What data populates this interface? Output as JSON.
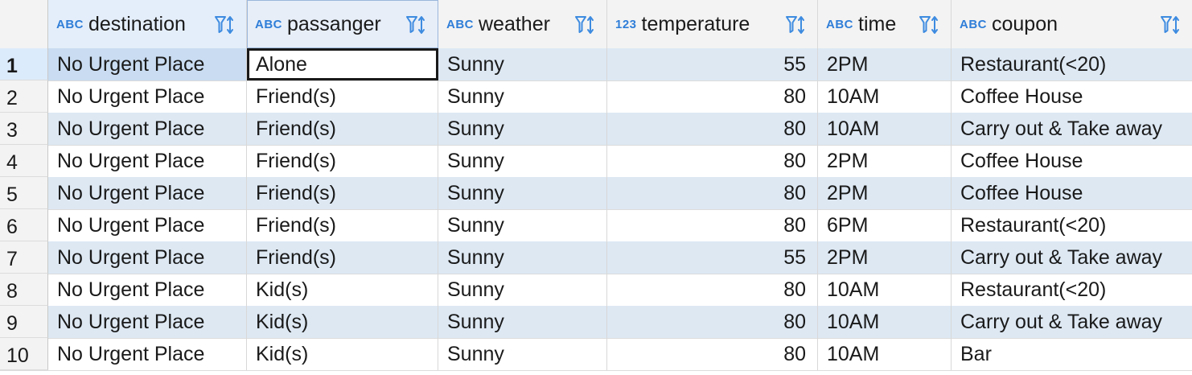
{
  "columns": [
    {
      "type": "ABC",
      "name": "destination"
    },
    {
      "type": "ABC",
      "name": "passanger"
    },
    {
      "type": "ABC",
      "name": "weather"
    },
    {
      "type": "123",
      "name": "temperature"
    },
    {
      "type": "ABC",
      "name": "time"
    },
    {
      "type": "ABC",
      "name": "coupon"
    }
  ],
  "rows": [
    {
      "num": "1",
      "destination": "No Urgent Place",
      "passanger": "Alone",
      "weather": "Sunny",
      "temperature": "55",
      "time": "2PM",
      "coupon": "Restaurant(<20)"
    },
    {
      "num": "2",
      "destination": "No Urgent Place",
      "passanger": "Friend(s)",
      "weather": "Sunny",
      "temperature": "80",
      "time": "10AM",
      "coupon": "Coffee House"
    },
    {
      "num": "3",
      "destination": "No Urgent Place",
      "passanger": "Friend(s)",
      "weather": "Sunny",
      "temperature": "80",
      "time": "10AM",
      "coupon": "Carry out & Take away"
    },
    {
      "num": "4",
      "destination": "No Urgent Place",
      "passanger": "Friend(s)",
      "weather": "Sunny",
      "temperature": "80",
      "time": "2PM",
      "coupon": "Coffee House"
    },
    {
      "num": "5",
      "destination": "No Urgent Place",
      "passanger": "Friend(s)",
      "weather": "Sunny",
      "temperature": "80",
      "time": "2PM",
      "coupon": "Coffee House"
    },
    {
      "num": "6",
      "destination": "No Urgent Place",
      "passanger": "Friend(s)",
      "weather": "Sunny",
      "temperature": "80",
      "time": "6PM",
      "coupon": "Restaurant(<20)"
    },
    {
      "num": "7",
      "destination": "No Urgent Place",
      "passanger": "Friend(s)",
      "weather": "Sunny",
      "temperature": "55",
      "time": "2PM",
      "coupon": "Carry out & Take away"
    },
    {
      "num": "8",
      "destination": "No Urgent Place",
      "passanger": "Kid(s)",
      "weather": "Sunny",
      "temperature": "80",
      "time": "10AM",
      "coupon": "Restaurant(<20)"
    },
    {
      "num": "9",
      "destination": "No Urgent Place",
      "passanger": "Kid(s)",
      "weather": "Sunny",
      "temperature": "80",
      "time": "10AM",
      "coupon": "Carry out & Take away"
    },
    {
      "num": "10",
      "destination": "No Urgent Place",
      "passanger": "Kid(s)",
      "weather": "Sunny",
      "temperature": "80",
      "time": "10AM",
      "coupon": "Bar"
    }
  ],
  "icons": {
    "filter_sort": "filter-sort-icon"
  },
  "colors": {
    "type_badge": "#2f7ed8",
    "alt_row": "#dde8f3",
    "selected_cell": "#c9dcf1"
  }
}
